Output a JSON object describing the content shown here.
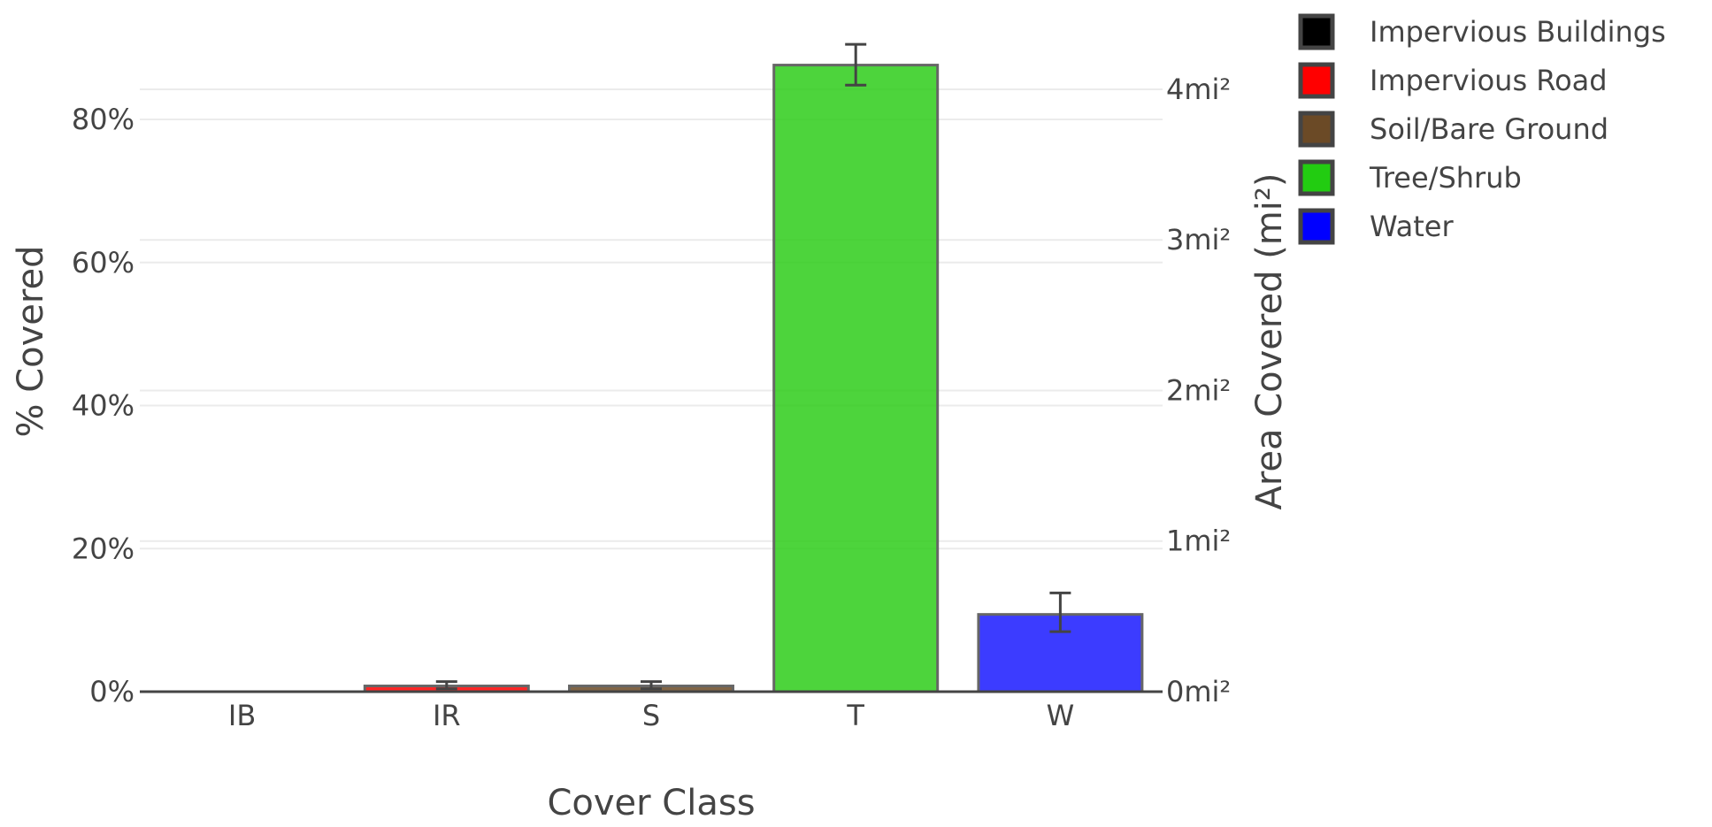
{
  "chart_data": {
    "type": "bar",
    "categories": [
      "IB",
      "IR",
      "S",
      "T",
      "W"
    ],
    "series": [
      {
        "values": [
          0.0,
          0.8,
          0.8,
          87.6,
          10.8
        ],
        "error_low": [
          0.0,
          0.4,
          0.4,
          84.8,
          8.4
        ],
        "error_high": [
          0.0,
          1.4,
          1.4,
          90.5,
          13.8
        ],
        "colors": [
          "#000000",
          "#ff0000",
          "#6b4a26",
          "#2ecc1a",
          "#1a1aff"
        ]
      }
    ],
    "xlabel": "Cover Class",
    "ylabel": "% Covered",
    "ylabel_right": "Area Covered (mi²)",
    "ylim": [
      0,
      92
    ],
    "yticks": [
      0,
      20,
      40,
      60,
      80
    ],
    "ytick_labels": [
      "0%",
      "20%",
      "40%",
      "60%",
      "80%"
    ],
    "ylim_right": [
      0,
      4.37
    ],
    "yticks_right": [
      0,
      1,
      2,
      3,
      4
    ],
    "ytick_labels_right": [
      "0mi²",
      "1mi²",
      "2mi²",
      "3mi²",
      "4mi²"
    ],
    "grid": true,
    "legend_position": "top-right",
    "legend": [
      {
        "label": "Impervious Buildings",
        "color": "#000000"
      },
      {
        "label": "Impervious Road",
        "color": "#ff0000"
      },
      {
        "label": "Soil/Bare Ground",
        "color": "#6b4a26"
      },
      {
        "label": "Tree/Shrub",
        "color": "#22cc11"
      },
      {
        "label": "Water",
        "color": "#0000ff"
      }
    ]
  }
}
